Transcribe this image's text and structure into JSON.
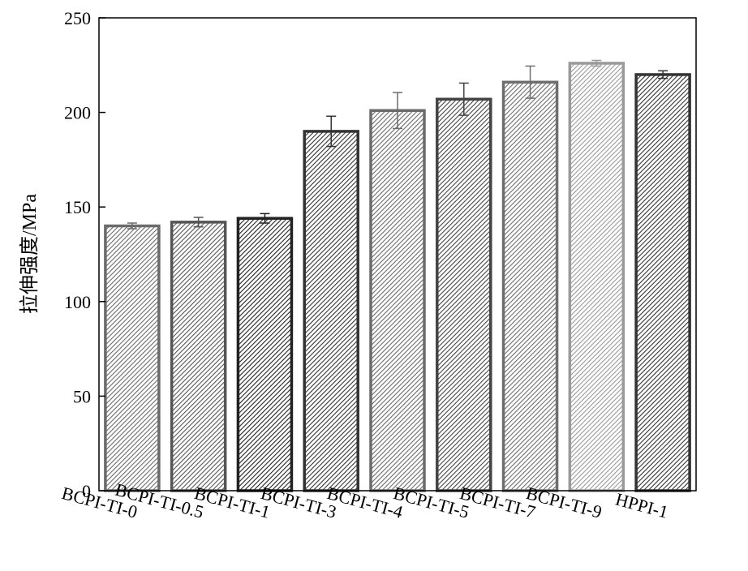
{
  "chart_data": {
    "type": "bar",
    "title": "",
    "xlabel": "",
    "ylabel": "拉伸强度/MPa",
    "ylim": [
      0,
      250
    ],
    "yticks": [
      0,
      50,
      100,
      150,
      200,
      250
    ],
    "grid": false,
    "categories": [
      "BCPI-TI-0",
      "BCPI-TI-0.5",
      "BCPI-TI-1",
      "BCPI-TI-3",
      "BCPI-TI-4",
      "BCPI-TI-5",
      "BCPI-TI-7",
      "BCPI-TI-9",
      "HPPI-1"
    ],
    "values": [
      140,
      142,
      144,
      190,
      201,
      207,
      216,
      226,
      220
    ],
    "errors": [
      1.5,
      2.5,
      2.5,
      8,
      9.5,
      8.5,
      8.5,
      1.5,
      2
    ],
    "colors": [
      "#6b6b6b",
      "#555555",
      "#222222",
      "#333333",
      "#6b6b6b",
      "#444444",
      "#6e6e6e",
      "#9a9a9a",
      "#333333"
    ]
  }
}
